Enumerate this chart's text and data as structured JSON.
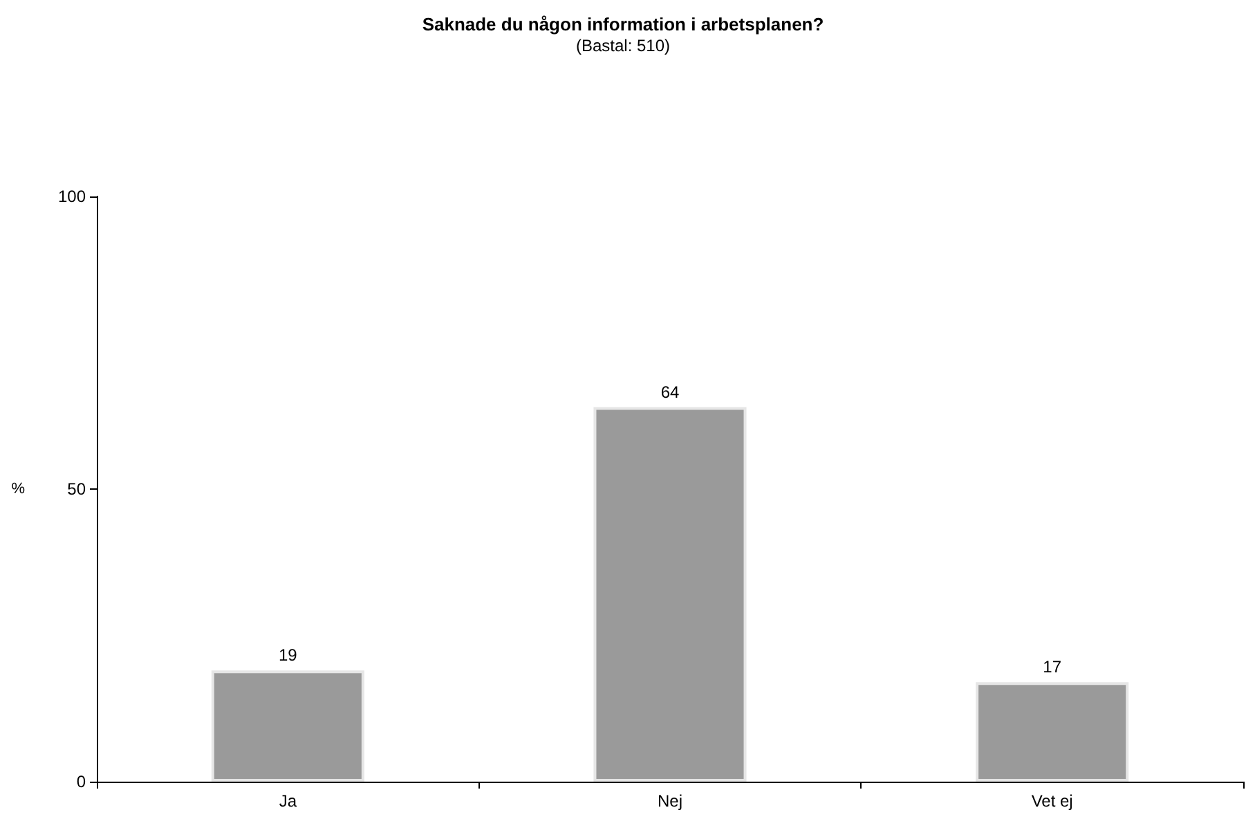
{
  "chart_data": {
    "type": "bar",
    "title": "Saknade du någon information i arbetsplanen?",
    "subtitle": "(Bastal: 510)",
    "ylabel": "%",
    "categories": [
      "Ja",
      "Nej",
      "Vet ej"
    ],
    "values": [
      19,
      64,
      17
    ],
    "color": "#9a9a9a",
    "ylim": [
      0,
      100
    ],
    "yticks": [
      0,
      50,
      100
    ],
    "grid": false,
    "data_labels": true
  }
}
